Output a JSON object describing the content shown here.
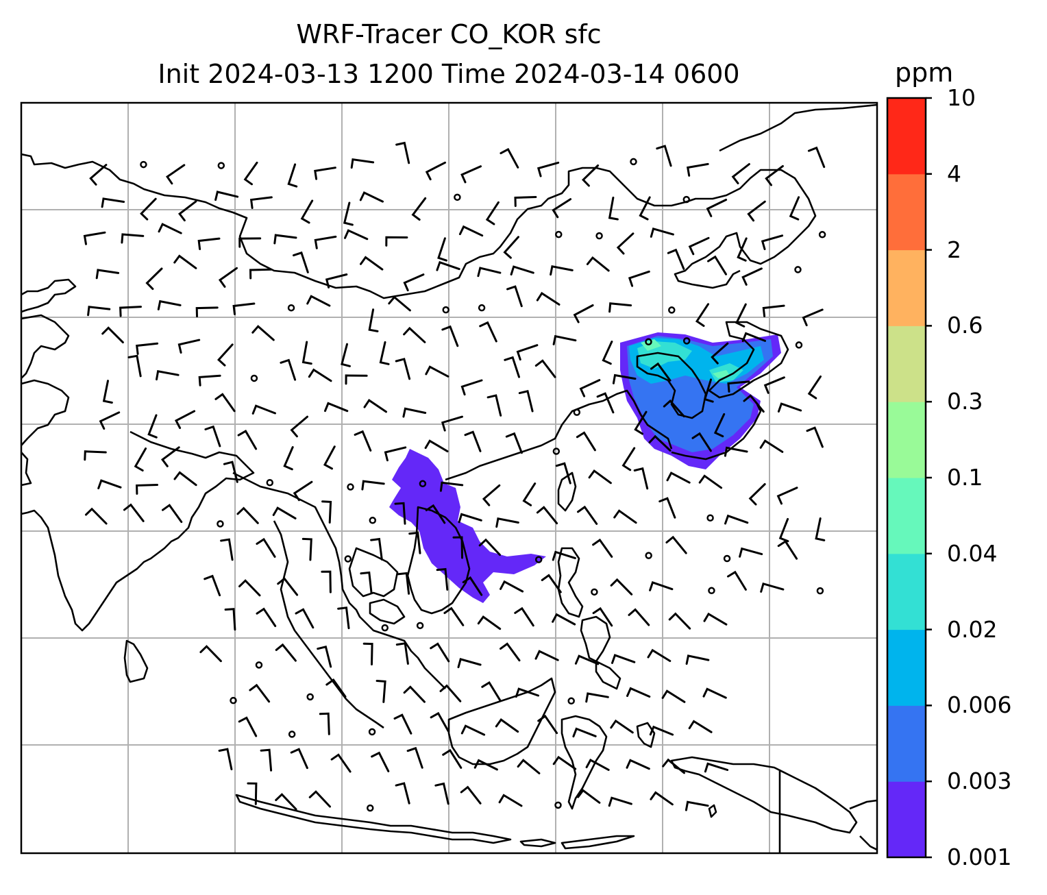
{
  "title": {
    "line1": "WRF-Tracer CO_KOR sfc",
    "line2": "Init 2024-03-13 1200 Time 2024-03-14 0600"
  },
  "colorbar": {
    "unit": "ppm",
    "levels": [
      "0.001",
      "0.003",
      "0.006",
      "0.02",
      "0.04",
      "0.1",
      "0.3",
      "0.6",
      "2",
      "4",
      "10"
    ],
    "colors": [
      "#6428f8",
      "#3574f2",
      "#00b4ed",
      "#33e0d4",
      "#66f8bb",
      "#99fa98",
      "#cce189",
      "#ffb25f",
      "#ff6e3a",
      "#ff2818"
    ]
  },
  "map": {
    "gridline_color": "#b0b0b0",
    "coastline_color": "#000000",
    "tracer_plumes": [
      {
        "region": "Korea / Northeast China",
        "level_range": "0.001-0.1"
      },
      {
        "region": "Southern China / Indochina",
        "level_range": "0.001-0.003"
      }
    ],
    "wind_barbs": "black"
  }
}
